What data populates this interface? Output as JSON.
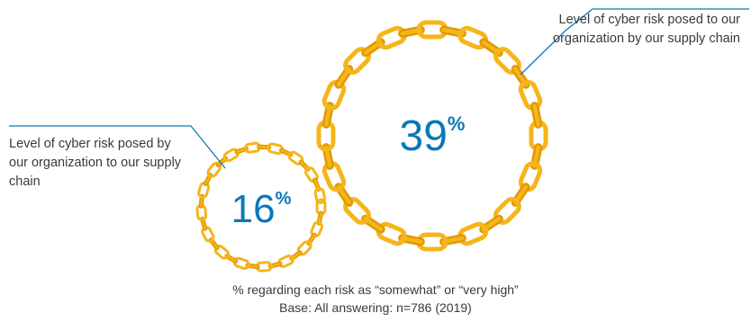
{
  "chart_data": {
    "type": "bubble",
    "series": [
      {
        "label": "Level of cyber risk posed to our organization by our supply chain",
        "value": 39,
        "unit": "%"
      },
      {
        "label": "Level of cyber risk posed by our organization to our supply chain",
        "value": 16,
        "unit": "%"
      }
    ],
    "colors": {
      "chain": "#f6b51a",
      "chain_dark": "#e29a00",
      "value_text": "#0a78b8",
      "leader_line": "#0a78b8",
      "label_text": "#3a3a3a"
    },
    "footnote_lines": [
      "% regarding each risk as “somewhat” or “very high”",
      "Base: All answering: n=786 (2019)"
    ]
  }
}
